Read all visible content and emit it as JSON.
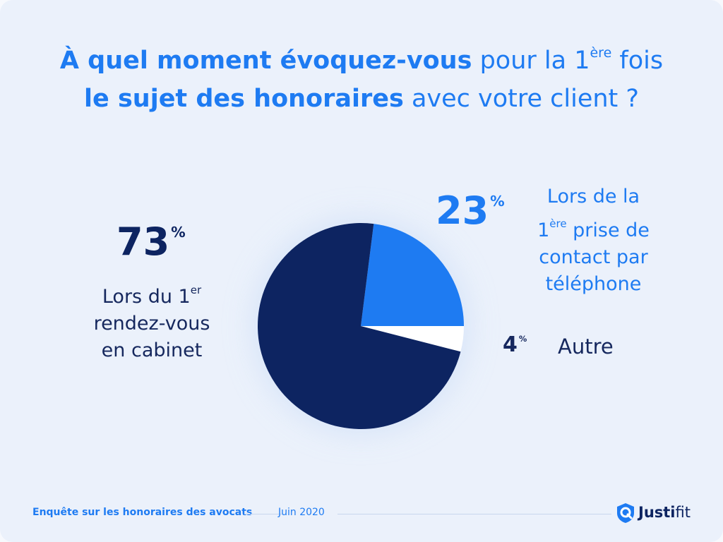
{
  "title": {
    "l1_bold": "À quel moment évoquez-vous",
    "l1_light": "pour la 1",
    "l1_sup": "ère",
    "l1_end": "fois",
    "l2_bold": "le sujet des honoraires",
    "l2_light": "avec votre client ?"
  },
  "labels": {
    "s73": {
      "pct": "73",
      "sign": "%",
      "l1": "Lors du 1",
      "l1_sup": "er",
      "l2": "rendez-vous",
      "l3": "en cabinet"
    },
    "s23": {
      "pct": "23",
      "sign": "%",
      "l1": "Lors de la",
      "l2_sup": "1",
      "l2_sup_small": "ère",
      "l2": "prise de",
      "l3": "contact par",
      "l4": "téléphone"
    },
    "s4": {
      "pct": "4",
      "sign": "%",
      "l1": "Autre"
    }
  },
  "chart_data": {
    "type": "pie",
    "title": "À quel moment évoquez-vous pour la 1ère fois le sujet des honoraires avec votre client ?",
    "slices": [
      {
        "label": "Lors du 1er rendez-vous en cabinet",
        "value": 73,
        "color": "#0d2461"
      },
      {
        "label": "Lors de la 1ère prise de contact par téléphone",
        "value": 23,
        "color": "#1e7bf2"
      },
      {
        "label": "Autre",
        "value": 4,
        "color": "#ffffff"
      }
    ],
    "unit": "%"
  },
  "footer": {
    "survey": "Enquête sur les honoraires des avocats",
    "date": "Juin 2020",
    "brand_bold": "Justi",
    "brand_light": "fit",
    "logo_icon": "justifit-logo-icon"
  },
  "colors": {
    "accent": "#1e7bf2",
    "navy": "#0d2461",
    "background": "#ebf1fb"
  }
}
